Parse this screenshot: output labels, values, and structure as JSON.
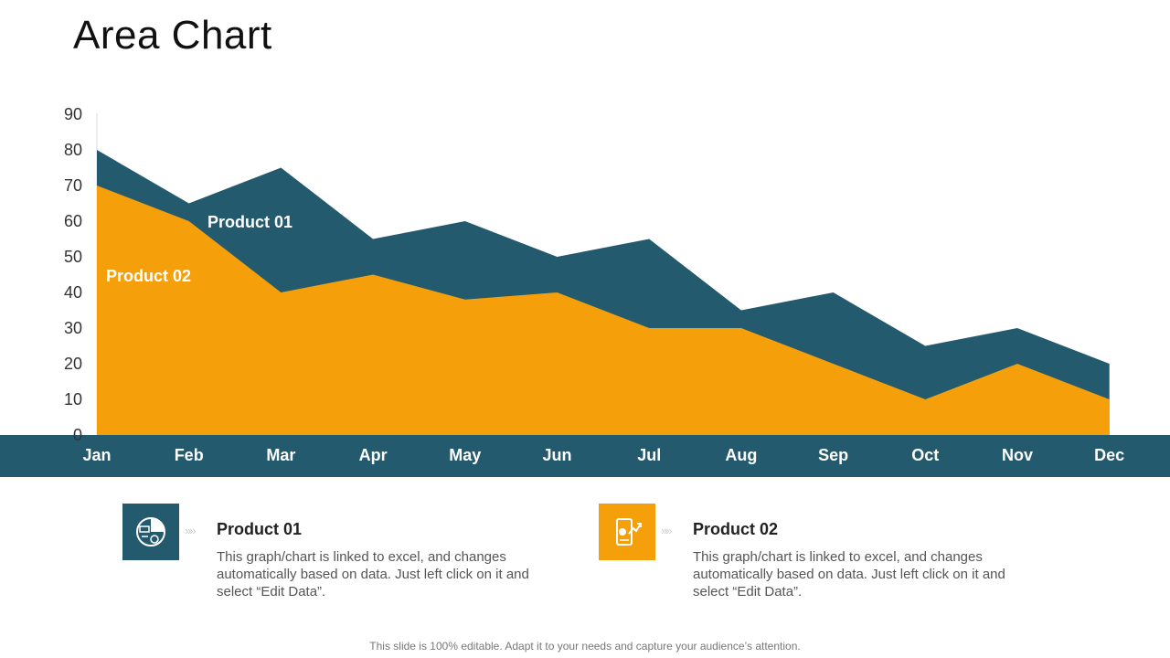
{
  "title": "Area Chart",
  "colors": {
    "product01": "#235a6e",
    "product02": "#f5a00a",
    "axis_band": "#235a6e"
  },
  "chart_data": {
    "type": "area",
    "title": "",
    "xlabel": "",
    "ylabel": "",
    "categories": [
      "Jan",
      "Feb",
      "Mar",
      "Apr",
      "May",
      "Jun",
      "Jul",
      "Aug",
      "Sep",
      "Oct",
      "Nov",
      "Dec"
    ],
    "ylim": [
      0,
      90
    ],
    "yticks": [
      0,
      10,
      20,
      30,
      40,
      50,
      60,
      70,
      80,
      90
    ],
    "series": [
      {
        "name": "Product 01",
        "values": [
          80,
          65,
          75,
          55,
          60,
          50,
          55,
          35,
          40,
          25,
          30,
          20
        ]
      },
      {
        "name": "Product 02",
        "values": [
          70,
          60,
          40,
          45,
          38,
          40,
          30,
          30,
          20,
          10,
          20,
          10
        ]
      }
    ],
    "grid": false,
    "legend": "none"
  },
  "cards": [
    {
      "title": "Product 01",
      "text": "This graph/chart is linked to excel, and changes automatically based on data. Just left click on it and select “Edit Data”.",
      "icon": "pie-chart-gear-icon",
      "arrows": "»»"
    },
    {
      "title": "Product 02",
      "text": "This graph/chart is linked to excel, and changes automatically based on data. Just left click on it and select “Edit Data”.",
      "icon": "mobile-chart-icon",
      "arrows": "»»"
    }
  ],
  "footer": "This slide is 100% editable. Adapt it to your needs and capture your audience’s attention."
}
